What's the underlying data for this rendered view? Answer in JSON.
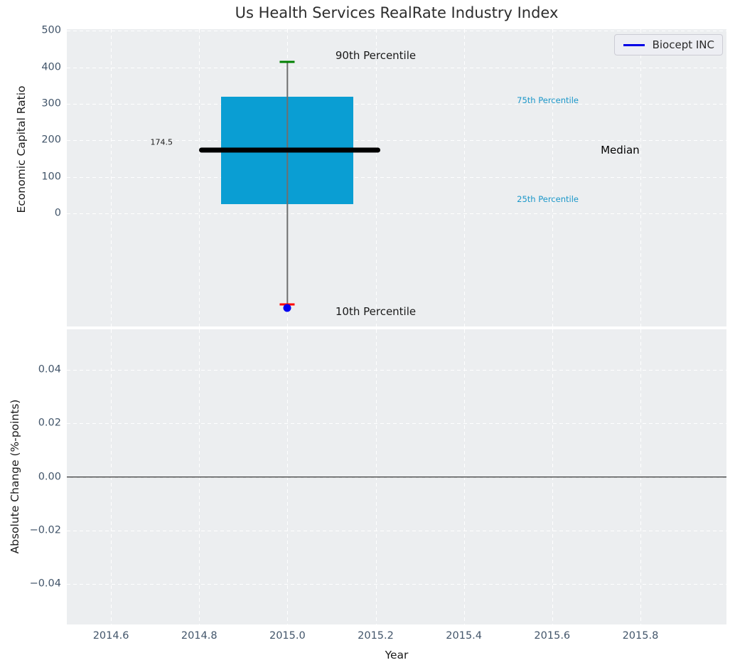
{
  "chart_data": {
    "type": "boxplot",
    "title": "Us Health Services RealRate Industry Index",
    "xlabel": "Year",
    "xlim": [
      2014.5,
      2015.995
    ],
    "xticks": {
      "values": [
        2014.6,
        2014.8,
        2015.0,
        2015.2,
        2015.4,
        2015.6,
        2015.8
      ],
      "labels": [
        "2014.6",
        "2014.8",
        "2015.0",
        "2015.2",
        "2015.4",
        "2015.6",
        "2015.8"
      ]
    },
    "legend": {
      "label": "Biocept INC",
      "position": "upper right"
    },
    "grid": "white dashed on light-gray background",
    "subplots": [
      {
        "name": "economic-capital-ratio-panel",
        "ylabel": "Economic Capital Ratio",
        "ylim": [
          -308,
          504
        ],
        "yticks": {
          "values": [
            500,
            400,
            300,
            200,
            100,
            0
          ],
          "labels": [
            "500",
            "400",
            "300",
            "200",
            "100",
            "0"
          ]
        },
        "boxplot": {
          "x_center": 2015.0,
          "box_x": [
            2014.85,
            2015.15
          ],
          "q1": 27,
          "median": 174.5,
          "q3": 320,
          "p10": -248,
          "p90": 415,
          "median_line_x": [
            2014.8,
            2015.21
          ],
          "cap_width_years": 0.034
        },
        "series_point": {
          "name": "Biocept INC",
          "x": 2015.0,
          "y": -258
        },
        "annotations": [
          {
            "text": "90th Percentile",
            "x": 2015.2,
            "y": 432,
            "size": 15,
            "color": "#1a1a1a",
            "align": "center"
          },
          {
            "text": "10th Percentile",
            "x": 2015.2,
            "y": -267,
            "size": 15,
            "color": "#1a1a1a",
            "align": "center"
          },
          {
            "text": "75th Percentile",
            "x": 2015.52,
            "y": 309,
            "size": 11.5,
            "color": "#1b97c9",
            "align": "left"
          },
          {
            "text": "25th Percentile",
            "x": 2015.52,
            "y": 40,
            "size": 11.5,
            "color": "#1b97c9",
            "align": "left"
          },
          {
            "text": "Median",
            "x": 2015.71,
            "y": 174,
            "size": 15,
            "color": "#000000",
            "align": "left"
          },
          {
            "text": "174.5",
            "x": 2014.74,
            "y": 196,
            "size": 11,
            "color": "#1a1a1a",
            "align": "right"
          }
        ]
      },
      {
        "name": "absolute-change-panel",
        "ylabel": "Absolute Change (%-points)",
        "ylim": [
          -0.0552,
          0.0552
        ],
        "yticks": {
          "values": [
            0.04,
            0.02,
            0,
            -0.02,
            -0.04
          ],
          "labels": [
            "0.04",
            "0.02",
            "0.00",
            "−0.02",
            "−0.04"
          ]
        },
        "zero_line_y": 0.0
      }
    ],
    "colors": {
      "figure_bg": "#ffffff",
      "plot_bg": "#eceef0",
      "gridline": "#ffffff",
      "box_fill": "#0a9ed3",
      "median_line": "#000000",
      "whisker": "#6f6f6f",
      "p90_cap": "#008000",
      "p10_cap": "#ff0000",
      "series_point": "#0000f0",
      "legend_line": "#0000e6",
      "zero_line": "#000000",
      "tick_label": "#42556a",
      "axis_label": "#1a1a1a",
      "title": "#2d2d2d"
    }
  }
}
